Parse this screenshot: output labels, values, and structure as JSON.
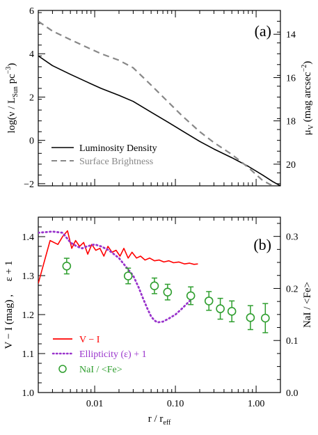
{
  "chart_data": [
    {
      "type": "line",
      "panel_label": "(a)",
      "x_axis": {
        "scale": "log",
        "range": [
          0.002,
          2.0
        ],
        "tick_labels": [
          "",
          "",
          ""
        ],
        "show_tick_labels": false
      },
      "left_axis": {
        "label_parts": {
          "main": "log(ν / L",
          "sub": "Sun",
          "mid": " pc",
          "sup": "−3",
          "end": ")"
        },
        "range": [
          -2.1,
          6.0
        ],
        "ticks": [
          -2,
          0,
          2,
          4,
          6
        ],
        "tick_labels": [
          "−2",
          "0",
          "2",
          "4",
          "6"
        ]
      },
      "right_axis": {
        "label_parts": {
          "main": "μ",
          "sub": "V",
          "mid": "  (mag  arcsec",
          "sup": "−2",
          "end": ")"
        },
        "range": [
          12.9,
          21.0
        ],
        "inverted": true,
        "ticks": [
          14,
          16,
          18,
          20
        ],
        "tick_labels": [
          "14",
          "16",
          "18",
          "20"
        ]
      },
      "legend": {
        "placement": "bottom-left"
      },
      "series": [
        {
          "name": "Luminosity Density",
          "axis": "left",
          "color": "#000000",
          "style": "solid",
          "x": [
            0.002,
            0.003,
            0.005,
            0.008,
            0.012,
            0.02,
            0.03,
            0.05,
            0.08,
            0.12,
            0.2,
            0.3,
            0.5,
            0.8,
            1.2,
            1.6,
            2.0
          ],
          "y": [
            3.9,
            3.45,
            3.05,
            2.7,
            2.4,
            2.08,
            1.8,
            1.3,
            0.85,
            0.45,
            -0.05,
            -0.4,
            -0.8,
            -1.2,
            -1.6,
            -1.9,
            -2.1
          ]
        },
        {
          "name": "Surface Brightness",
          "axis": "right",
          "color": "#888888",
          "style": "dashed",
          "x": [
            0.002,
            0.003,
            0.005,
            0.008,
            0.012,
            0.02,
            0.03,
            0.05,
            0.08,
            0.12,
            0.2,
            0.3,
            0.5,
            0.8,
            1.2,
            1.6
          ],
          "y": [
            13.4,
            13.85,
            14.25,
            14.6,
            14.9,
            15.2,
            15.55,
            16.35,
            17.1,
            17.75,
            18.5,
            19.0,
            19.55,
            20.15,
            20.75,
            21.0
          ]
        }
      ]
    },
    {
      "type": "line",
      "panel_label": "(b)",
      "x_axis": {
        "label_parts": {
          "main": "r / r",
          "sub": "eff"
        },
        "scale": "log",
        "range": [
          0.002,
          2.0
        ],
        "ticks": [
          0.01,
          0.1,
          1.0
        ],
        "tick_labels": [
          "0.01",
          "0.10",
          "1.00"
        ]
      },
      "left_axis": {
        "label": "V − I (mag) ,     ε + 1",
        "range": [
          1.0,
          1.45
        ],
        "ticks": [
          1.0,
          1.1,
          1.2,
          1.3,
          1.4
        ],
        "tick_labels": [
          "1.0",
          "1.1",
          "1.2",
          "1.3",
          "1.4"
        ]
      },
      "right_axis": {
        "label": "NaI / <Fe>",
        "range": [
          0.0,
          0.337
        ],
        "ticks": [
          0.0,
          0.1,
          0.2,
          0.3
        ],
        "tick_labels": [
          "0.0",
          "0.1",
          "0.2",
          "0.3"
        ]
      },
      "legend": {
        "placement": "bottom-left"
      },
      "series": [
        {
          "name": "V − I",
          "axis": "left",
          "color": "#ff0000",
          "style": "solid",
          "x": [
            0.002,
            0.0028,
            0.0035,
            0.004,
            0.0046,
            0.0052,
            0.0058,
            0.0065,
            0.0073,
            0.0082,
            0.0092,
            0.0103,
            0.0116,
            0.013,
            0.0146,
            0.0164,
            0.0184,
            0.0206,
            0.023,
            0.026,
            0.029,
            0.033,
            0.037,
            0.042,
            0.048,
            0.055,
            0.063,
            0.072,
            0.083,
            0.095,
            0.11,
            0.13,
            0.15,
            0.17,
            0.19
          ],
          "y": [
            1.28,
            1.39,
            1.38,
            1.4,
            1.415,
            1.37,
            1.39,
            1.375,
            1.385,
            1.355,
            1.38,
            1.365,
            1.37,
            1.35,
            1.375,
            1.36,
            1.365,
            1.35,
            1.37,
            1.345,
            1.36,
            1.345,
            1.35,
            1.34,
            1.345,
            1.338,
            1.34,
            1.335,
            1.338,
            1.333,
            1.335,
            1.33,
            1.332,
            1.329,
            1.33
          ]
        },
        {
          "name": "Ellipticity (ε) + 1",
          "axis": "left",
          "color": "#9933cc",
          "style": "dotted",
          "x": [
            0.002,
            0.003,
            0.004,
            0.005,
            0.006,
            0.007,
            0.008,
            0.01,
            0.012,
            0.015,
            0.02,
            0.025,
            0.03,
            0.035,
            0.04,
            0.045,
            0.05,
            0.055,
            0.06,
            0.07,
            0.08,
            0.1,
            0.12,
            0.15
          ],
          "y": [
            1.41,
            1.413,
            1.41,
            1.385,
            1.375,
            1.37,
            1.375,
            1.38,
            1.375,
            1.365,
            1.345,
            1.32,
            1.3,
            1.27,
            1.24,
            1.215,
            1.195,
            1.185,
            1.18,
            1.182,
            1.188,
            1.2,
            1.215,
            1.235
          ]
        },
        {
          "name": "NaI / <Fe>",
          "axis": "right",
          "color": "#2e9e2e",
          "style": "markers",
          "x": [
            0.0045,
            0.026,
            0.055,
            0.08,
            0.155,
            0.26,
            0.36,
            0.5,
            0.85,
            1.3
          ],
          "y": [
            0.243,
            0.224,
            0.205,
            0.193,
            0.186,
            0.176,
            0.161,
            0.156,
            0.144,
            0.143
          ],
          "err": [
            0.015,
            0.015,
            0.015,
            0.015,
            0.017,
            0.018,
            0.02,
            0.02,
            0.023,
            0.028
          ]
        }
      ]
    }
  ]
}
